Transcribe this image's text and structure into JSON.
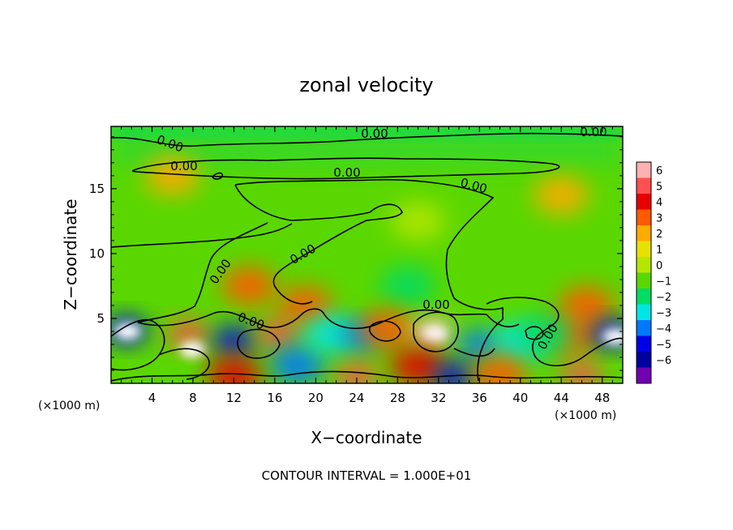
{
  "chart_data": {
    "type": "heatmap",
    "title": "zonal velocity",
    "xlabel": "X−coordinate",
    "ylabel": "Z−coordinate",
    "x_unit_left": "(×1000 m)",
    "x_unit_right": "(×1000 m)",
    "footer": "CONTOUR INTERVAL = 1.000E+01",
    "xlim": [
      0,
      50
    ],
    "ylim": [
      0,
      19.8
    ],
    "x_ticks": [
      4,
      8,
      12,
      16,
      20,
      24,
      28,
      32,
      36,
      40,
      44,
      48
    ],
    "y_ticks": [
      5,
      10,
      15
    ],
    "colorbar": {
      "ticks": [
        "6",
        "5",
        "4",
        "3",
        "2",
        "1",
        "0",
        "−1",
        "−2",
        "−3",
        "−4",
        "−5",
        "−6"
      ],
      "colors": [
        "#ffb0b0",
        "#ff5050",
        "#e80000",
        "#ff5a00",
        "#ffaa00",
        "#e8e000",
        "#b4e600",
        "#5ad700",
        "#00dc64",
        "#00e6e6",
        "#0078ff",
        "#0000e6",
        "#0000a0",
        "#7000b0"
      ]
    },
    "contour_labels": [
      "0.00",
      "0.00",
      "0.00",
      "0.00",
      "0.00",
      "0.00",
      "0.00",
      "0.00",
      "0.00",
      "0.00",
      "0.00",
      "0.00"
    ],
    "field_features": [
      {
        "x": 6.0,
        "z": 16.0,
        "v": 1.4
      },
      {
        "x": 44.0,
        "z": 14.5,
        "v": 1.3
      },
      {
        "x": 30.0,
        "z": 12.5,
        "v": -0.9
      },
      {
        "x": 24.0,
        "z": 9.0,
        "v": -1.2
      },
      {
        "x": 29.0,
        "z": 7.5,
        "v": -2.0
      },
      {
        "x": 19.0,
        "z": 6.0,
        "v": 2.2
      },
      {
        "x": 13.5,
        "z": 7.5,
        "v": 2.5
      },
      {
        "x": 46.5,
        "z": 6.0,
        "v": 3.0
      },
      {
        "x": 45.0,
        "z": 3.8,
        "v": 3.0
      },
      {
        "x": 1.5,
        "z": 4.1,
        "v": -5.0
      },
      {
        "x": 1.6,
        "z": 4.0,
        "v": -6.5
      },
      {
        "x": 7.5,
        "z": 3.8,
        "v": 4.5
      },
      {
        "x": 8.0,
        "z": 2.6,
        "v": 6.5
      },
      {
        "x": 12.0,
        "z": 3.3,
        "v": -5.0
      },
      {
        "x": 16.3,
        "z": 3.8,
        "v": 4.6
      },
      {
        "x": 18.2,
        "z": 1.4,
        "v": -4.0
      },
      {
        "x": 21.5,
        "z": 3.8,
        "v": -3.5
      },
      {
        "x": 24.5,
        "z": 3.7,
        "v": -4.5
      },
      {
        "x": 27.0,
        "z": 4.2,
        "v": 2.5
      },
      {
        "x": 31.4,
        "z": 4.0,
        "v": 5.2
      },
      {
        "x": 31.6,
        "z": 3.8,
        "v": 6.5
      },
      {
        "x": 36.0,
        "z": 3.0,
        "v": -4.5
      },
      {
        "x": 40.0,
        "z": 3.2,
        "v": -3.2
      },
      {
        "x": 42.5,
        "z": 3.8,
        "v": -2.5
      },
      {
        "x": 49.0,
        "z": 3.8,
        "v": -5.0
      },
      {
        "x": 49.3,
        "z": 3.6,
        "v": -6.5
      },
      {
        "x": 24.0,
        "z": 0.5,
        "v": 5.0
      },
      {
        "x": 30.0,
        "z": 1.3,
        "v": 4.0
      },
      {
        "x": 12.0,
        "z": 0.6,
        "v": 4.0
      },
      {
        "x": 33.5,
        "z": 0.5,
        "v": -5.0
      },
      {
        "x": 46.0,
        "z": 0.6,
        "v": 5.0
      },
      {
        "x": 38.0,
        "z": 0.6,
        "v": 3.0
      }
    ]
  }
}
